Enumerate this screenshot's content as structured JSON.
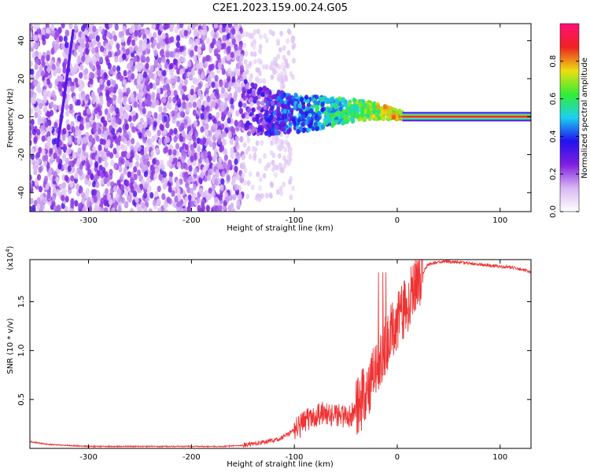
{
  "title": "C2E1.2023.159.00.24.G05",
  "colors": {
    "snr_line": "#ee3333",
    "colormap": [
      "#ffffff",
      "#d9b8f2",
      "#7f1fe0",
      "#2211ee",
      "#1ad0f0",
      "#33ee33",
      "#eedd11",
      "#ee2222",
      "#ff1177"
    ]
  },
  "chart_data": [
    {
      "type": "heatmap",
      "title": "C2E1.2023.159.00.24.G05",
      "xlabel": "Height of straight line (km)",
      "ylabel": "Frequency (Hz)",
      "xlim": [
        -357,
        130
      ],
      "ylim": [
        -50,
        49
      ],
      "xticks": [
        -300,
        -200,
        -100,
        0,
        100
      ],
      "yticks": [
        -40,
        -20,
        0,
        20,
        40
      ],
      "grid": false,
      "colorbar": {
        "label": "Normalized spectral amplitude",
        "range": [
          0.0,
          1.0
        ],
        "ticks": [
          0.0,
          0.2,
          0.4,
          0.6,
          0.8
        ]
      },
      "features": {
        "noise_region_x": [
          -357,
          -150
        ],
        "signal_band_x": [
          -150,
          5
        ],
        "coherent_tone_x": [
          5,
          130
        ],
        "coherent_tone_frequency_hz": 0
      }
    },
    {
      "type": "line",
      "xlabel": "Height of straight line (km)",
      "ylabel": "SNR (10 * v/v)",
      "y_multiplier": "(x10^4)",
      "xlim": [
        -357,
        130
      ],
      "ylim": [
        0,
        1.93
      ],
      "xticks": [
        -300,
        -200,
        -100,
        0,
        100
      ],
      "yticks": [
        0.5,
        1.0,
        1.5
      ],
      "grid": false,
      "series": [
        {
          "x": [
            -357,
            -340,
            -320,
            -300,
            -250,
            -200,
            -170,
            -150,
            -130,
            -120,
            -110,
            -100,
            -90,
            -80,
            -70,
            -60,
            -50,
            -40,
            -30,
            -20,
            -10,
            0,
            10,
            20,
            30,
            40,
            50,
            60,
            70,
            80,
            90,
            100,
            110,
            120,
            130
          ],
          "y": [
            0.07,
            0.04,
            0.03,
            0.02,
            0.02,
            0.02,
            0.02,
            0.03,
            0.06,
            0.08,
            0.12,
            0.18,
            0.25,
            0.32,
            0.35,
            0.33,
            0.3,
            0.35,
            0.55,
            0.8,
            1.05,
            1.25,
            1.45,
            1.7,
            1.88,
            1.9,
            1.91,
            1.9,
            1.89,
            1.88,
            1.87,
            1.86,
            1.85,
            1.83,
            1.8
          ]
        }
      ]
    }
  ]
}
